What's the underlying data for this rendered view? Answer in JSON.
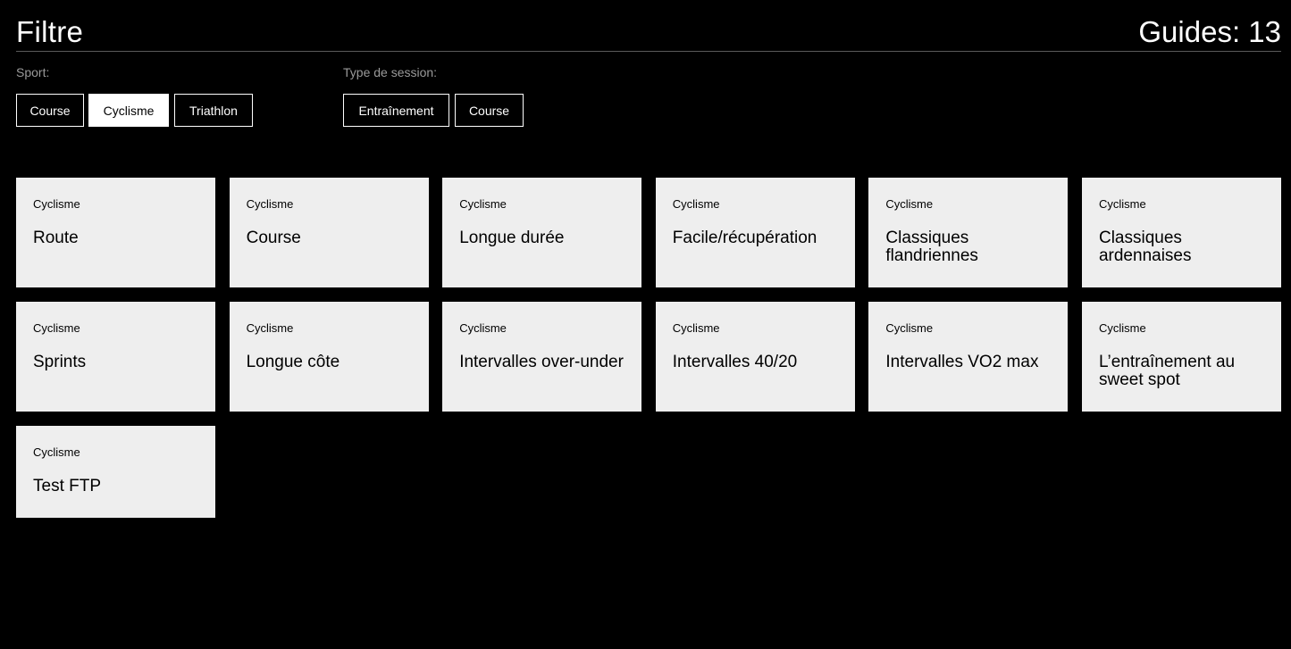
{
  "header": {
    "title": "Filtre",
    "count_label": "Guides: 13"
  },
  "filters": {
    "sport": {
      "label": "Sport:",
      "options": [
        {
          "label": "Course",
          "active": false
        },
        {
          "label": "Cyclisme",
          "active": true
        },
        {
          "label": "Triathlon",
          "active": false
        }
      ]
    },
    "session": {
      "label": "Type de session:",
      "options": [
        {
          "label": "Entraînement",
          "active": false
        },
        {
          "label": "Course",
          "active": false
        }
      ]
    }
  },
  "guides": [
    {
      "sport": "Cyclisme",
      "name": "Route"
    },
    {
      "sport": "Cyclisme",
      "name": "Course"
    },
    {
      "sport": "Cyclisme",
      "name": "Longue durée"
    },
    {
      "sport": "Cyclisme",
      "name": "Facile/récupération"
    },
    {
      "sport": "Cyclisme",
      "name": "Classiques flandriennes"
    },
    {
      "sport": "Cyclisme",
      "name": "Classiques ardennaises"
    },
    {
      "sport": "Cyclisme",
      "name": "Sprints"
    },
    {
      "sport": "Cyclisme",
      "name": "Longue côte"
    },
    {
      "sport": "Cyclisme",
      "name": "Intervalles over-under"
    },
    {
      "sport": "Cyclisme",
      "name": "Intervalles 40/20"
    },
    {
      "sport": "Cyclisme",
      "name": "Intervalles VO2 max"
    },
    {
      "sport": "Cyclisme",
      "name": "L’entraînement au sweet spot"
    },
    {
      "sport": "Cyclisme",
      "name": "Test FTP"
    }
  ]
}
